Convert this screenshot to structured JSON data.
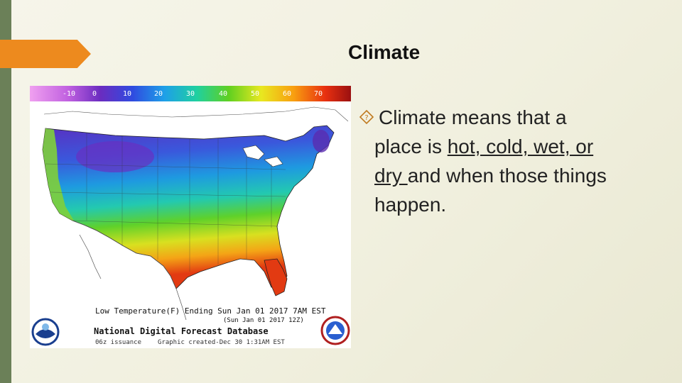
{
  "slide": {
    "title": "Climate",
    "bullet": {
      "icon": "diamond-question-icon",
      "line1": "Climate means that a",
      "line2_pre": "place is ",
      "line2_u": "hot, cold, wet, or",
      "line3_u": "dry ",
      "line3_post": "and when those things",
      "line4": "happen."
    }
  },
  "map": {
    "legend_ticks": [
      "-10",
      "0",
      "10",
      "20",
      "30",
      "40",
      "50",
      "60",
      "70"
    ],
    "caption_line1": "Low Temperature(F) Ending Sun Jan 01 2017   7AM EST",
    "caption_line2": "(Sun Jan 01 2017 12Z)",
    "caption_title": "National Digital Forecast Database",
    "caption_issuance": "06z issuance",
    "caption_created": "Graphic created-Dec 30   1:31AM EST",
    "colors": {
      "accent": "#ed8a1e",
      "sidebar": "#6b8058"
    }
  }
}
